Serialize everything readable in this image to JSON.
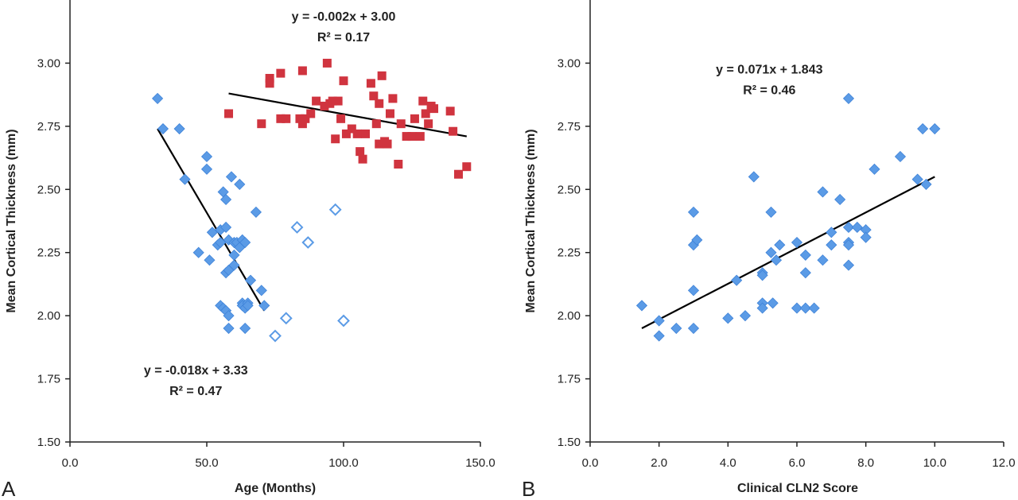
{
  "colors": {
    "blue": "#5b9be6",
    "blue_stroke": "#3f83d8",
    "red": "#d0343f",
    "axis": "#222222",
    "trendline": "#000000"
  },
  "chart_data": [
    {
      "type": "scatter",
      "panel": "A",
      "title": "",
      "xlabel": "Age (Months)",
      "ylabel": "Mean Cortical Thickness (mm)",
      "xlim": [
        0,
        150
      ],
      "ylim": [
        1.5,
        3.25
      ],
      "xticks": [
        "0.0",
        "50.0",
        "100.0",
        "150.0"
      ],
      "xtick_values": [
        0,
        50,
        100,
        150
      ],
      "yticks": [
        "1.50",
        "1.75",
        "2.00",
        "2.25",
        "2.50",
        "2.75",
        "3.00"
      ],
      "ytick_values": [
        1.5,
        1.75,
        2.0,
        2.25,
        2.5,
        2.75,
        3.0
      ],
      "grid": false,
      "legend": "none",
      "series": [
        {
          "marker": "diamond-filled",
          "color": "blue",
          "points": [
            [
              32,
              2.86
            ],
            [
              34,
              2.74
            ],
            [
              40,
              2.74
            ],
            [
              42,
              2.54
            ],
            [
              47,
              2.25
            ],
            [
              50,
              2.63
            ],
            [
              50,
              2.58
            ],
            [
              51,
              2.22
            ],
            [
              52,
              2.33
            ],
            [
              54,
              2.28
            ],
            [
              55,
              2.34
            ],
            [
              55,
              2.29
            ],
            [
              55,
              2.04
            ],
            [
              56,
              2.03
            ],
            [
              56,
              2.49
            ],
            [
              57,
              2.46
            ],
            [
              57,
              2.35
            ],
            [
              57,
              2.17
            ],
            [
              57,
              2.02
            ],
            [
              58,
              2.3
            ],
            [
              58,
              2.18
            ],
            [
              58,
              2.0
            ],
            [
              58,
              1.95
            ],
            [
              59,
              2.55
            ],
            [
              60,
              2.29
            ],
            [
              60,
              2.24
            ],
            [
              60,
              2.2
            ],
            [
              61,
              2.29
            ],
            [
              62,
              2.27
            ],
            [
              62,
              2.52
            ],
            [
              63,
              2.3
            ],
            [
              63,
              2.05
            ],
            [
              63,
              2.04
            ],
            [
              64,
              2.29
            ],
            [
              64,
              2.03
            ],
            [
              64,
              1.95
            ],
            [
              65,
              2.05
            ],
            [
              65,
              2.04
            ],
            [
              66,
              2.14
            ],
            [
              68,
              2.41
            ],
            [
              70,
              2.1
            ],
            [
              71,
              2.04
            ]
          ]
        },
        {
          "marker": "diamond-open",
          "color": "blue",
          "points": [
            [
              75,
              1.92
            ],
            [
              79,
              1.99
            ],
            [
              83,
              2.35
            ],
            [
              87,
              2.29
            ],
            [
              97,
              2.42
            ],
            [
              100,
              1.98
            ]
          ]
        },
        {
          "marker": "square",
          "color": "red",
          "points": [
            [
              58,
              2.8
            ],
            [
              70,
              2.76
            ],
            [
              73,
              2.94
            ],
            [
              73,
              2.92
            ],
            [
              77,
              2.96
            ],
            [
              77,
              2.78
            ],
            [
              79,
              2.78
            ],
            [
              84,
              2.78
            ],
            [
              85,
              2.97
            ],
            [
              85,
              2.76
            ],
            [
              86,
              2.78
            ],
            [
              88,
              2.8
            ],
            [
              90,
              2.85
            ],
            [
              93,
              2.83
            ],
            [
              94,
              3.0
            ],
            [
              95,
              2.84
            ],
            [
              96,
              2.85
            ],
            [
              97,
              2.7
            ],
            [
              98,
              2.85
            ],
            [
              99,
              2.78
            ],
            [
              100,
              2.93
            ],
            [
              101,
              2.72
            ],
            [
              103,
              2.74
            ],
            [
              105,
              2.72
            ],
            [
              106,
              2.65
            ],
            [
              107,
              2.62
            ],
            [
              108,
              2.72
            ],
            [
              110,
              2.92
            ],
            [
              111,
              2.87
            ],
            [
              112,
              2.76
            ],
            [
              113,
              2.68
            ],
            [
              113,
              2.84
            ],
            [
              114,
              2.95
            ],
            [
              115,
              2.69
            ],
            [
              116,
              2.68
            ],
            [
              117,
              2.8
            ],
            [
              118,
              2.86
            ],
            [
              120,
              2.6
            ],
            [
              121,
              2.76
            ],
            [
              123,
              2.71
            ],
            [
              125,
              2.71
            ],
            [
              126,
              2.78
            ],
            [
              128,
              2.71
            ],
            [
              129,
              2.85
            ],
            [
              130,
              2.8
            ],
            [
              131,
              2.76
            ],
            [
              132,
              2.83
            ],
            [
              133,
              2.82
            ],
            [
              139,
              2.81
            ],
            [
              140,
              2.73
            ],
            [
              142,
              2.56
            ],
            [
              145,
              2.59
            ]
          ]
        }
      ],
      "trendlines": [
        {
          "x": [
            32,
            71
          ],
          "y": [
            2.74,
            2.02
          ]
        },
        {
          "x": [
            58,
            145
          ],
          "y": [
            2.88,
            2.71
          ]
        }
      ],
      "annotations": [
        {
          "lines": [
            "y = -0.002x + 3.00",
            "R² = 0.17"
          ],
          "at": [
            100,
            3.25
          ]
        },
        {
          "lines": [
            "y = -0.018x + 3.33",
            "R² = 0.47"
          ],
          "at": [
            46,
            1.85
          ]
        }
      ]
    },
    {
      "type": "scatter",
      "panel": "B",
      "title": "",
      "xlabel": "Clinical CLN2 Score",
      "ylabel": "Mean Cortical Thickness (mm)",
      "xlim": [
        0,
        12
      ],
      "ylim": [
        1.5,
        3.25
      ],
      "xticks": [
        "0.0",
        "2.0",
        "4.0",
        "6.0",
        "8.0",
        "10.0",
        "12.0"
      ],
      "xtick_values": [
        0,
        2,
        4,
        6,
        8,
        10,
        12
      ],
      "yticks": [
        "1.50",
        "1.75",
        "2.00",
        "2.25",
        "2.50",
        "2.75",
        "3.00"
      ],
      "ytick_values": [
        1.5,
        1.75,
        2.0,
        2.25,
        2.5,
        2.75,
        3.0
      ],
      "grid": false,
      "legend": "none",
      "series": [
        {
          "marker": "diamond-filled",
          "color": "blue",
          "points": [
            [
              1.5,
              2.04
            ],
            [
              2.0,
              1.98
            ],
            [
              2.0,
              1.92
            ],
            [
              2.5,
              1.95
            ],
            [
              3.0,
              2.41
            ],
            [
              3.0,
              2.28
            ],
            [
              3.0,
              2.1
            ],
            [
              3.0,
              1.95
            ],
            [
              3.1,
              2.3
            ],
            [
              4.0,
              1.99
            ],
            [
              4.25,
              2.14
            ],
            [
              4.5,
              2.0
            ],
            [
              4.75,
              2.55
            ],
            [
              5.0,
              2.17
            ],
            [
              5.0,
              2.16
            ],
            [
              5.0,
              2.05
            ],
            [
              5.0,
              2.03
            ],
            [
              5.25,
              2.41
            ],
            [
              5.25,
              2.25
            ],
            [
              5.3,
              2.05
            ],
            [
              5.4,
              2.22
            ],
            [
              5.5,
              2.28
            ],
            [
              6.0,
              2.29
            ],
            [
              6.0,
              2.03
            ],
            [
              6.25,
              2.24
            ],
            [
              6.25,
              2.17
            ],
            [
              6.25,
              2.03
            ],
            [
              6.5,
              2.03
            ],
            [
              6.75,
              2.49
            ],
            [
              6.75,
              2.22
            ],
            [
              7.0,
              2.33
            ],
            [
              7.0,
              2.28
            ],
            [
              7.25,
              2.46
            ],
            [
              7.5,
              2.86
            ],
            [
              7.5,
              2.35
            ],
            [
              7.5,
              2.29
            ],
            [
              7.5,
              2.28
            ],
            [
              7.5,
              2.2
            ],
            [
              7.75,
              2.35
            ],
            [
              8.0,
              2.34
            ],
            [
              8.0,
              2.31
            ],
            [
              8.25,
              2.58
            ],
            [
              9.0,
              2.63
            ],
            [
              9.5,
              2.54
            ],
            [
              9.65,
              2.74
            ],
            [
              9.75,
              2.52
            ],
            [
              10.0,
              2.74
            ]
          ]
        }
      ],
      "trendlines": [
        {
          "x": [
            1.5,
            10.0
          ],
          "y": [
            1.95,
            2.55
          ]
        }
      ],
      "annotations": [
        {
          "lines": [
            "y = 0.071x + 1.843",
            "R² = 0.46"
          ],
          "at": [
            5.2,
            3.04
          ]
        }
      ]
    }
  ]
}
